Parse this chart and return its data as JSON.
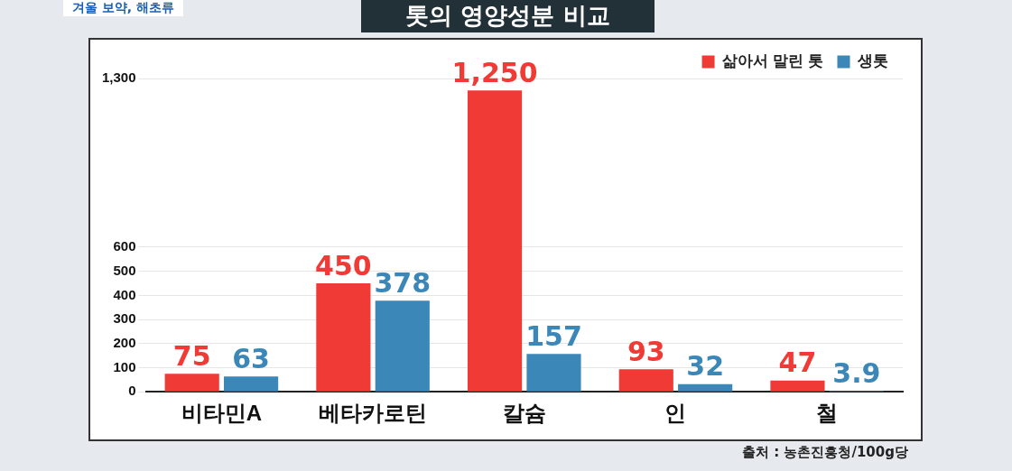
{
  "chart_data": {
    "type": "bar",
    "title": "톳의 영양성분 비교",
    "categories": [
      "비타민A",
      "베타카로틴",
      "칼슘",
      "인",
      "철"
    ],
    "series": [
      {
        "name": "삶아서 말린 톳",
        "color": "#f03a35",
        "values": [
          75,
          450,
          1250,
          93,
          47
        ],
        "value_labels": [
          "75",
          "450",
          "1,250",
          "93",
          "47"
        ]
      },
      {
        "name": "생톳",
        "color": "#3a87b8",
        "values": [
          63,
          378,
          157,
          32,
          3.9
        ],
        "value_labels": [
          "63",
          "378",
          "157",
          "32",
          "3.9"
        ]
      }
    ],
    "ylim": [
      0,
      1300
    ],
    "yticks": [
      0,
      100,
      200,
      300,
      400,
      500,
      600,
      {
        "value": 1300,
        "label": "1,300"
      }
    ],
    "grid": "y",
    "legend": "top right",
    "annotations": [
      "겨울 보약, 해초류",
      "출처 : 농촌진흥청/100g당"
    ]
  }
}
